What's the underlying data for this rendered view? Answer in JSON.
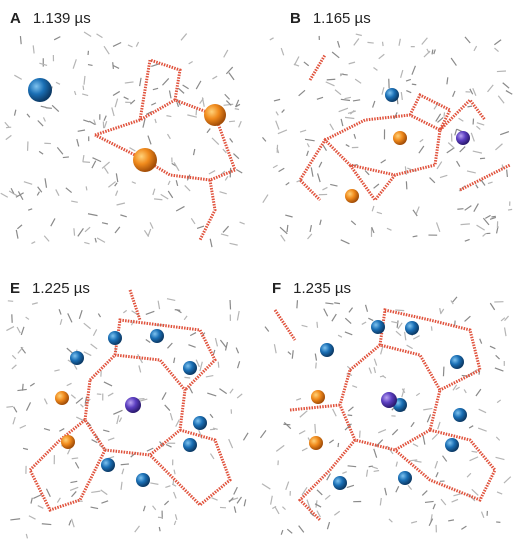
{
  "panels": [
    {
      "label": "A",
      "time": "1.139 µs"
    },
    {
      "label": "B",
      "time": "1.165 µs"
    },
    {
      "label": "E",
      "time": "1.225 µs"
    },
    {
      "label": "F",
      "time": "1.235 µs"
    }
  ]
}
